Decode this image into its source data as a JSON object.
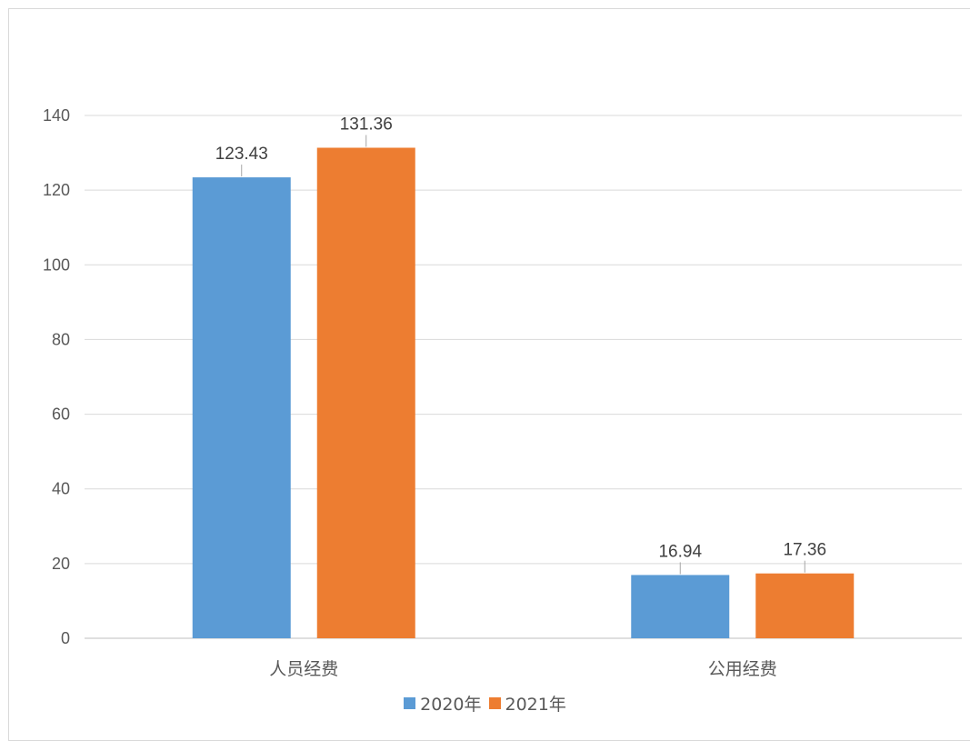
{
  "chart_data": {
    "type": "bar",
    "categories": [
      "人员经费",
      "公用经费"
    ],
    "series": [
      {
        "name": "2020年",
        "values": [
          123.43,
          16.94
        ],
        "labels": [
          "123.43",
          "16.94"
        ],
        "color": "#5B9BD5"
      },
      {
        "name": "2021年",
        "values": [
          131.36,
          17.36
        ],
        "labels": [
          "131.36",
          "17.36"
        ],
        "color": "#ED7D31"
      }
    ],
    "yticks": [
      "0",
      "20",
      "40",
      "60",
      "80",
      "100",
      "120",
      "140"
    ],
    "ylim": [
      0,
      140
    ],
    "grid": true,
    "legend_position": "bottom",
    "title": "",
    "xlabel": "",
    "ylabel": ""
  }
}
